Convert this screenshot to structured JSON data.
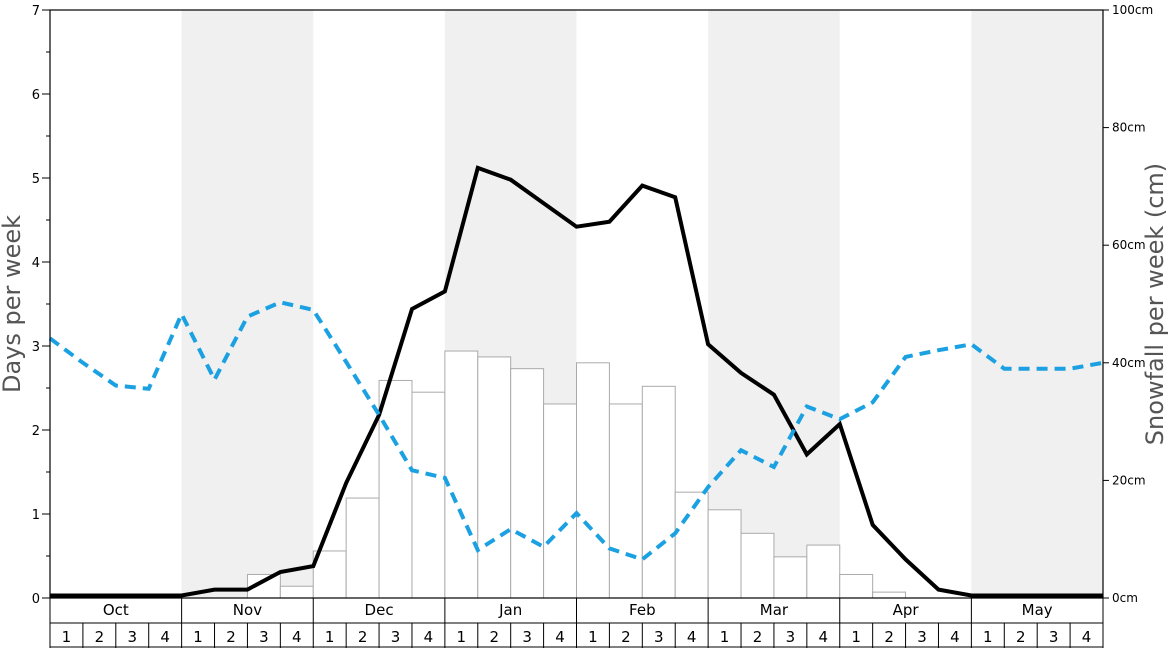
{
  "chart_data": {
    "type": "bar+line",
    "left_axis": {
      "label": "Days per week",
      "ylim": [
        0,
        7
      ],
      "ticks": [
        "0",
        "1",
        "2",
        "3",
        "4",
        "5",
        "6",
        "7"
      ]
    },
    "right_axis": {
      "label": "Snowfall per week (cm)",
      "ylim": [
        0,
        100
      ],
      "ticks": [
        "0cm",
        "20cm",
        "40cm",
        "60cm",
        "80cm",
        "100cm"
      ]
    },
    "months": [
      "Oct",
      "Nov",
      "Dec",
      "Jan",
      "Feb",
      "Mar",
      "Apr",
      "May"
    ],
    "week_labels": [
      "1",
      "2",
      "3",
      "4"
    ],
    "shaded_months": [
      "Nov",
      "Jan",
      "Mar",
      "May"
    ],
    "series": [
      {
        "kind": "bar",
        "axis": "right",
        "values": [
          0,
          0,
          0,
          0,
          0,
          0,
          4,
          2,
          8,
          17,
          37,
          35,
          42,
          41,
          39,
          33,
          40,
          33,
          36,
          18,
          15,
          11,
          7,
          9,
          4,
          1,
          0,
          0,
          0,
          0,
          0,
          0
        ]
      },
      {
        "kind": "line",
        "axis": "left",
        "style": "solid",
        "color": "#000000",
        "values": [
          0.03,
          0.03,
          0.03,
          0.03,
          0.03,
          0.1,
          0.1,
          0.31,
          0.38,
          1.37,
          2.18,
          3.44,
          3.65,
          5.12,
          4.98,
          4.7,
          4.42,
          4.48,
          4.91,
          4.77,
          3.02,
          2.68,
          2.42,
          1.71,
          2.07,
          0.87,
          0.46,
          0.1,
          0.03,
          0.03,
          0.03,
          0.03,
          0.03
        ]
      },
      {
        "kind": "line",
        "axis": "left",
        "style": "dashed",
        "color": "#1ba1e2",
        "values": [
          3.09,
          2.8,
          2.53,
          2.49,
          3.38,
          2.6,
          3.35,
          3.52,
          3.43,
          2.81,
          2.18,
          1.52,
          1.43,
          0.57,
          0.82,
          0.61,
          1.01,
          0.59,
          0.46,
          0.77,
          1.32,
          1.76,
          1.56,
          2.28,
          2.13,
          2.33,
          2.87,
          2.95,
          3.02,
          2.73,
          2.73,
          2.73,
          2.8
        ]
      }
    ]
  }
}
